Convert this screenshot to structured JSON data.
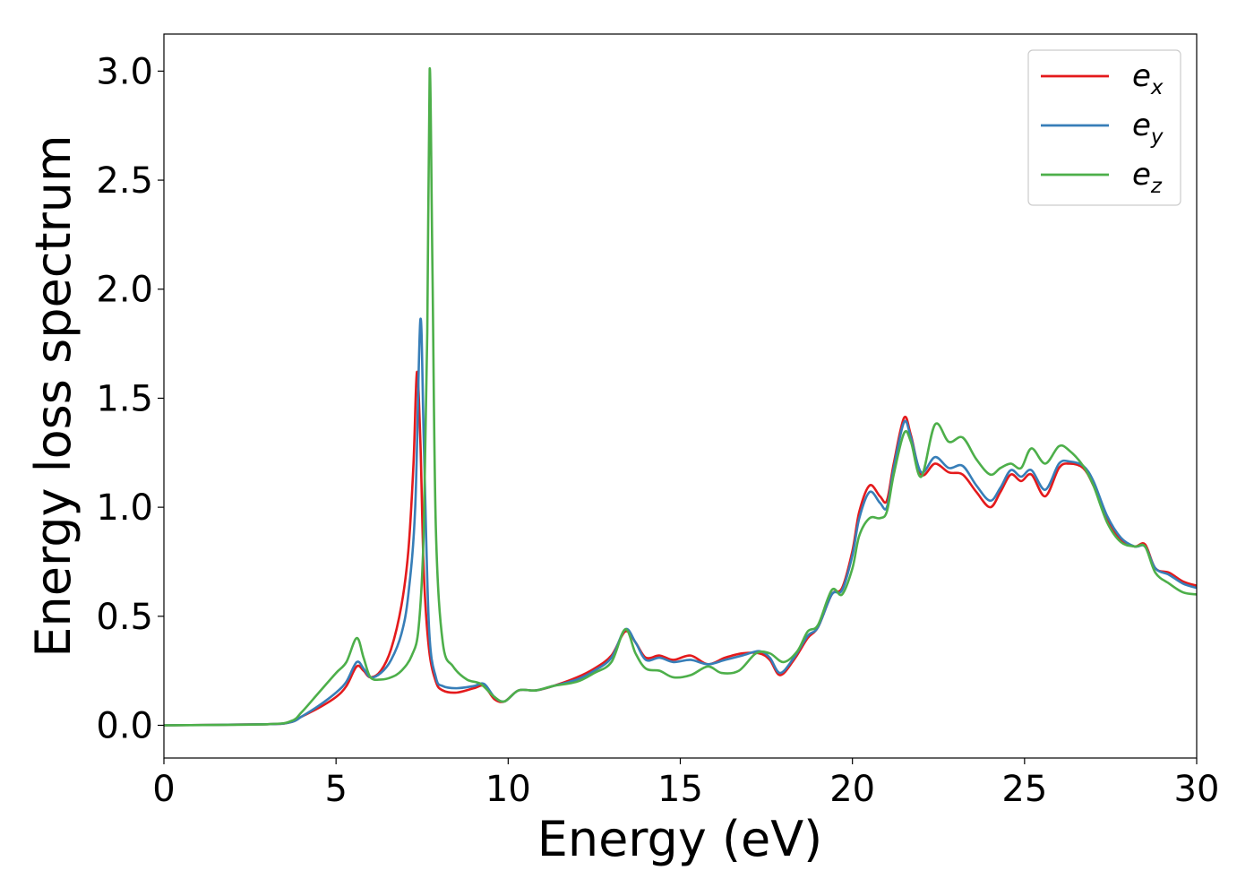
{
  "chart_data": {
    "type": "line",
    "title": "",
    "xlabel": "Energy (eV)",
    "ylabel": "Energy loss spectrum",
    "xlim": [
      0,
      30
    ],
    "ylim": [
      -0.15,
      3.17
    ],
    "xticks": [
      0,
      5,
      10,
      15,
      20,
      25,
      30
    ],
    "yticks": [
      0.0,
      0.5,
      1.0,
      1.5,
      2.0,
      2.5,
      3.0
    ],
    "xtick_labels": [
      "0",
      "5",
      "10",
      "15",
      "20",
      "25",
      "30"
    ],
    "ytick_labels": [
      "0.0",
      "0.5",
      "1.0",
      "1.5",
      "2.0",
      "2.5",
      "3.0"
    ],
    "grid": false,
    "legend_position": "top-right",
    "series": [
      {
        "name": "e_x",
        "legend_base": "e",
        "legend_sub": "x",
        "color": "#e41a1c",
        "points": [
          [
            0,
            0
          ],
          [
            3,
            0.005
          ],
          [
            3.7,
            0.015
          ],
          [
            4,
            0.04
          ],
          [
            4.5,
            0.08
          ],
          [
            5,
            0.13
          ],
          [
            5.3,
            0.18
          ],
          [
            5.6,
            0.27
          ],
          [
            5.8,
            0.25
          ],
          [
            6,
            0.22
          ],
          [
            6.3,
            0.25
          ],
          [
            6.6,
            0.35
          ],
          [
            6.9,
            0.55
          ],
          [
            7.1,
            0.8
          ],
          [
            7.25,
            1.2
          ],
          [
            7.35,
            1.62
          ],
          [
            7.45,
            1.3
          ],
          [
            7.55,
            0.7
          ],
          [
            7.7,
            0.35
          ],
          [
            7.9,
            0.2
          ],
          [
            8.1,
            0.16
          ],
          [
            8.5,
            0.15
          ],
          [
            9,
            0.17
          ],
          [
            9.3,
            0.18
          ],
          [
            9.6,
            0.12
          ],
          [
            9.9,
            0.11
          ],
          [
            10.3,
            0.16
          ],
          [
            10.8,
            0.16
          ],
          [
            11.3,
            0.18
          ],
          [
            12,
            0.22
          ],
          [
            12.5,
            0.26
          ],
          [
            13,
            0.32
          ],
          [
            13.4,
            0.43
          ],
          [
            13.7,
            0.38
          ],
          [
            14,
            0.31
          ],
          [
            14.4,
            0.32
          ],
          [
            14.8,
            0.3
          ],
          [
            15.3,
            0.32
          ],
          [
            15.8,
            0.28
          ],
          [
            16.3,
            0.31
          ],
          [
            16.8,
            0.33
          ],
          [
            17.3,
            0.33
          ],
          [
            17.6,
            0.3
          ],
          [
            17.9,
            0.23
          ],
          [
            18.3,
            0.3
          ],
          [
            18.7,
            0.4
          ],
          [
            19,
            0.45
          ],
          [
            19.4,
            0.6
          ],
          [
            19.7,
            0.63
          ],
          [
            20,
            0.8
          ],
          [
            20.2,
            0.98
          ],
          [
            20.5,
            1.1
          ],
          [
            20.8,
            1.05
          ],
          [
            21,
            1.03
          ],
          [
            21.2,
            1.2
          ],
          [
            21.5,
            1.41
          ],
          [
            21.7,
            1.33
          ],
          [
            22,
            1.15
          ],
          [
            22.4,
            1.2
          ],
          [
            22.8,
            1.16
          ],
          [
            23.2,
            1.15
          ],
          [
            23.6,
            1.07
          ],
          [
            24,
            1.0
          ],
          [
            24.3,
            1.07
          ],
          [
            24.6,
            1.15
          ],
          [
            24.9,
            1.12
          ],
          [
            25.2,
            1.15
          ],
          [
            25.6,
            1.05
          ],
          [
            26,
            1.18
          ],
          [
            26.3,
            1.2
          ],
          [
            26.7,
            1.18
          ],
          [
            27,
            1.1
          ],
          [
            27.4,
            0.95
          ],
          [
            27.8,
            0.85
          ],
          [
            28.2,
            0.82
          ],
          [
            28.5,
            0.83
          ],
          [
            28.8,
            0.72
          ],
          [
            29.2,
            0.7
          ],
          [
            29.6,
            0.66
          ],
          [
            30,
            0.64
          ]
        ]
      },
      {
        "name": "e_y",
        "legend_base": "e",
        "legend_sub": "y",
        "color": "#377eb8",
        "points": [
          [
            0,
            0
          ],
          [
            3,
            0.005
          ],
          [
            3.7,
            0.015
          ],
          [
            4,
            0.04
          ],
          [
            4.5,
            0.09
          ],
          [
            5,
            0.15
          ],
          [
            5.3,
            0.2
          ],
          [
            5.6,
            0.29
          ],
          [
            5.8,
            0.26
          ],
          [
            6,
            0.22
          ],
          [
            6.3,
            0.24
          ],
          [
            6.6,
            0.3
          ],
          [
            6.9,
            0.42
          ],
          [
            7.1,
            0.6
          ],
          [
            7.3,
            1.0
          ],
          [
            7.45,
            1.86
          ],
          [
            7.55,
            1.3
          ],
          [
            7.7,
            0.45
          ],
          [
            7.9,
            0.22
          ],
          [
            8.1,
            0.18
          ],
          [
            8.5,
            0.17
          ],
          [
            9,
            0.18
          ],
          [
            9.3,
            0.19
          ],
          [
            9.6,
            0.13
          ],
          [
            9.9,
            0.11
          ],
          [
            10.3,
            0.16
          ],
          [
            10.8,
            0.16
          ],
          [
            11.3,
            0.18
          ],
          [
            12,
            0.21
          ],
          [
            12.5,
            0.25
          ],
          [
            13,
            0.31
          ],
          [
            13.4,
            0.44
          ],
          [
            13.7,
            0.38
          ],
          [
            14,
            0.3
          ],
          [
            14.4,
            0.31
          ],
          [
            14.8,
            0.29
          ],
          [
            15.3,
            0.3
          ],
          [
            15.8,
            0.28
          ],
          [
            16.3,
            0.3
          ],
          [
            16.8,
            0.32
          ],
          [
            17.3,
            0.34
          ],
          [
            17.6,
            0.31
          ],
          [
            17.9,
            0.24
          ],
          [
            18.3,
            0.31
          ],
          [
            18.7,
            0.41
          ],
          [
            19,
            0.45
          ],
          [
            19.4,
            0.6
          ],
          [
            19.7,
            0.62
          ],
          [
            20,
            0.78
          ],
          [
            20.2,
            0.95
          ],
          [
            20.5,
            1.07
          ],
          [
            20.8,
            1.02
          ],
          [
            21,
            1.0
          ],
          [
            21.2,
            1.18
          ],
          [
            21.5,
            1.39
          ],
          [
            21.7,
            1.32
          ],
          [
            22,
            1.16
          ],
          [
            22.4,
            1.23
          ],
          [
            22.8,
            1.18
          ],
          [
            23.2,
            1.19
          ],
          [
            23.6,
            1.1
          ],
          [
            24,
            1.03
          ],
          [
            24.3,
            1.09
          ],
          [
            24.6,
            1.17
          ],
          [
            24.9,
            1.14
          ],
          [
            25.2,
            1.17
          ],
          [
            25.6,
            1.08
          ],
          [
            26,
            1.2
          ],
          [
            26.3,
            1.21
          ],
          [
            26.7,
            1.19
          ],
          [
            27,
            1.12
          ],
          [
            27.4,
            0.96
          ],
          [
            27.8,
            0.86
          ],
          [
            28.2,
            0.82
          ],
          [
            28.5,
            0.82
          ],
          [
            28.8,
            0.72
          ],
          [
            29.2,
            0.69
          ],
          [
            29.6,
            0.65
          ],
          [
            30,
            0.63
          ]
        ]
      },
      {
        "name": "e_z",
        "legend_base": "e",
        "legend_sub": "z",
        "color": "#4daf4a",
        "points": [
          [
            0,
            0
          ],
          [
            3,
            0.005
          ],
          [
            3.7,
            0.02
          ],
          [
            4,
            0.06
          ],
          [
            4.5,
            0.15
          ],
          [
            5,
            0.24
          ],
          [
            5.3,
            0.29
          ],
          [
            5.6,
            0.4
          ],
          [
            5.8,
            0.31
          ],
          [
            6,
            0.22
          ],
          [
            6.3,
            0.21
          ],
          [
            6.6,
            0.22
          ],
          [
            6.9,
            0.25
          ],
          [
            7.2,
            0.32
          ],
          [
            7.4,
            0.45
          ],
          [
            7.55,
            0.9
          ],
          [
            7.65,
            1.8
          ],
          [
            7.72,
            3.01
          ],
          [
            7.8,
            2.1
          ],
          [
            7.9,
            0.9
          ],
          [
            8.1,
            0.38
          ],
          [
            8.4,
            0.27
          ],
          [
            8.8,
            0.21
          ],
          [
            9.2,
            0.19
          ],
          [
            9.6,
            0.13
          ],
          [
            9.9,
            0.11
          ],
          [
            10.3,
            0.16
          ],
          [
            10.8,
            0.16
          ],
          [
            11.3,
            0.18
          ],
          [
            12,
            0.2
          ],
          [
            12.5,
            0.24
          ],
          [
            13,
            0.29
          ],
          [
            13.4,
            0.44
          ],
          [
            13.7,
            0.33
          ],
          [
            14,
            0.26
          ],
          [
            14.4,
            0.25
          ],
          [
            14.8,
            0.22
          ],
          [
            15.3,
            0.23
          ],
          [
            15.8,
            0.27
          ],
          [
            16.2,
            0.24
          ],
          [
            16.7,
            0.25
          ],
          [
            17.2,
            0.33
          ],
          [
            17.6,
            0.33
          ],
          [
            18,
            0.29
          ],
          [
            18.4,
            0.34
          ],
          [
            18.7,
            0.43
          ],
          [
            19,
            0.46
          ],
          [
            19.4,
            0.62
          ],
          [
            19.7,
            0.6
          ],
          [
            20,
            0.72
          ],
          [
            20.2,
            0.87
          ],
          [
            20.5,
            0.95
          ],
          [
            20.8,
            0.95
          ],
          [
            21,
            0.98
          ],
          [
            21.2,
            1.15
          ],
          [
            21.5,
            1.34
          ],
          [
            21.7,
            1.3
          ],
          [
            22,
            1.14
          ],
          [
            22.4,
            1.38
          ],
          [
            22.8,
            1.3
          ],
          [
            23.2,
            1.32
          ],
          [
            23.6,
            1.22
          ],
          [
            24,
            1.15
          ],
          [
            24.3,
            1.18
          ],
          [
            24.6,
            1.2
          ],
          [
            24.9,
            1.18
          ],
          [
            25.2,
            1.27
          ],
          [
            25.6,
            1.2
          ],
          [
            26,
            1.28
          ],
          [
            26.3,
            1.26
          ],
          [
            26.7,
            1.19
          ],
          [
            27,
            1.1
          ],
          [
            27.4,
            0.93
          ],
          [
            27.8,
            0.84
          ],
          [
            28.2,
            0.82
          ],
          [
            28.5,
            0.82
          ],
          [
            28.8,
            0.7
          ],
          [
            29.2,
            0.65
          ],
          [
            29.6,
            0.61
          ],
          [
            30,
            0.6
          ]
        ]
      }
    ]
  }
}
